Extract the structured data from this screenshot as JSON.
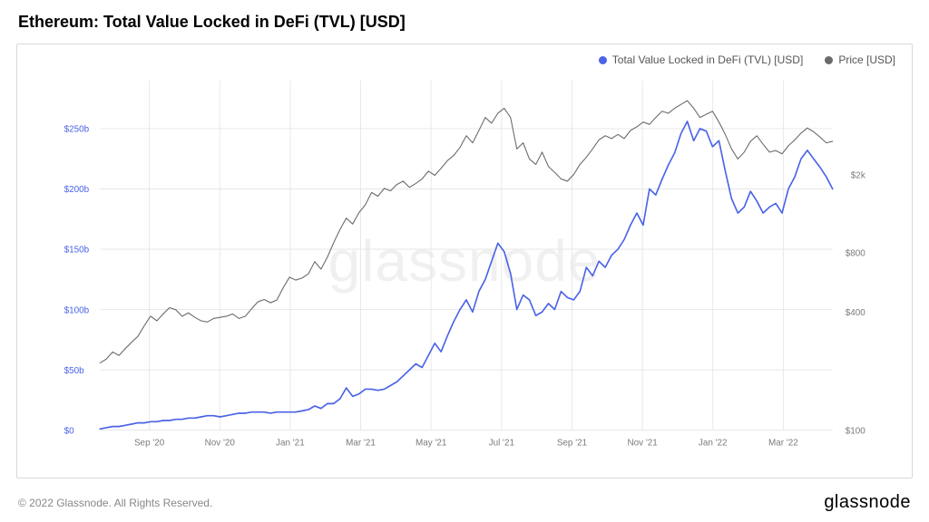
{
  "title": "Ethereum: Total Value Locked in DeFi (TVL) [USD]",
  "watermark": "glassnode",
  "footer_left": "© 2022 Glassnode. All Rights Reserved.",
  "footer_right": "glassnode",
  "legend": {
    "series1": {
      "label": "Total Value Locked in DeFi (TVL) [USD]",
      "color": "#4a63e7"
    },
    "series2": {
      "label": "Price [USD]",
      "color": "#6b6b6b"
    }
  },
  "chart": {
    "type": "line_dual_axis",
    "background_color": "#ffffff",
    "border_color": "#d9d9d9",
    "grid_color": "#e6e6e6",
    "x_labels": [
      "Sep '20",
      "Nov '20",
      "Jan '21",
      "Mar '21",
      "May '21",
      "Jul '21",
      "Sep '21",
      "Nov '21",
      "Jan '22",
      "Mar '22"
    ],
    "y_left": {
      "label_color": "#4a63e7",
      "ticks": [
        0,
        50,
        100,
        150,
        200,
        250
      ],
      "tick_labels": [
        "$0",
        "$50b",
        "$100b",
        "$150b",
        "$200b",
        "$250b"
      ],
      "min": 0,
      "max": 290
    },
    "y_right": {
      "label_color": "#7a7a7a",
      "scale": "log",
      "ticks": [
        100,
        400,
        800,
        2000
      ],
      "tick_labels": [
        "$100",
        "$400",
        "$800",
        "$2k"
      ],
      "min_log": 2.0,
      "max_log": 3.78
    },
    "tvl_series": {
      "color": "#4a63e7",
      "line_width": 1.8,
      "data": [
        1,
        2,
        3,
        3,
        4,
        5,
        6,
        6,
        7,
        7,
        8,
        8,
        9,
        9,
        10,
        10,
        11,
        12,
        12,
        11,
        12,
        13,
        14,
        14,
        15,
        15,
        15,
        14,
        15,
        15,
        15,
        15,
        16,
        17,
        20,
        18,
        22,
        22,
        26,
        35,
        28,
        30,
        34,
        34,
        33,
        34,
        37,
        40,
        45,
        50,
        55,
        52,
        62,
        72,
        65,
        78,
        90,
        100,
        108,
        98,
        115,
        125,
        140,
        155,
        148,
        130,
        100,
        112,
        108,
        95,
        98,
        105,
        100,
        115,
        110,
        108,
        115,
        135,
        128,
        140,
        135,
        145,
        150,
        158,
        170,
        180,
        170,
        200,
        195,
        208,
        220,
        230,
        246,
        256,
        240,
        250,
        248,
        235,
        240,
        215,
        192,
        180,
        185,
        198,
        190,
        180,
        185,
        188,
        180,
        200,
        210,
        225,
        232,
        225,
        218,
        210,
        200
      ]
    },
    "price_series": {
      "color": "#6b6b6b",
      "line_width": 1.2,
      "data": [
        220,
        230,
        250,
        240,
        260,
        280,
        300,
        340,
        380,
        360,
        390,
        420,
        410,
        380,
        395,
        375,
        360,
        355,
        370,
        375,
        380,
        390,
        370,
        380,
        415,
        450,
        462,
        445,
        460,
        530,
        600,
        580,
        595,
        625,
        720,
        660,
        760,
        900,
        1050,
        1200,
        1120,
        1280,
        1400,
        1620,
        1550,
        1700,
        1650,
        1780,
        1850,
        1720,
        1800,
        1900,
        2080,
        1980,
        2150,
        2350,
        2500,
        2750,
        3150,
        2900,
        3350,
        3900,
        3650,
        4100,
        4350,
        3900,
        2700,
        2900,
        2400,
        2250,
        2600,
        2200,
        2050,
        1900,
        1850,
        2000,
        2250,
        2450,
        2700,
        3000,
        3150,
        3050,
        3200,
        3050,
        3350,
        3500,
        3700,
        3600,
        3900,
        4200,
        4100,
        4350,
        4550,
        4750,
        4350,
        3900,
        4050,
        4200,
        3700,
        3200,
        2700,
        2400,
        2600,
        2950,
        3150,
        2850,
        2600,
        2650,
        2550,
        2800,
        3000,
        3250,
        3450,
        3300,
        3100,
        2900,
        2950
      ]
    }
  }
}
